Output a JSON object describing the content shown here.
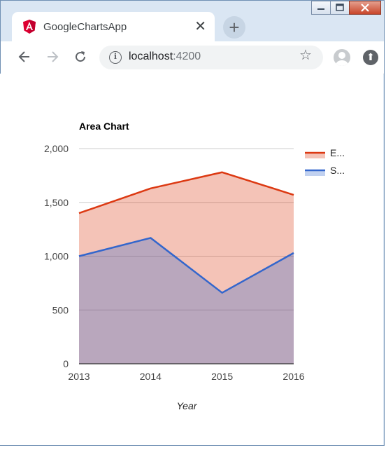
{
  "browser": {
    "tab_title": "GoogleChartsApp",
    "tab_icon": "angular-icon",
    "close_tab_symbol": "✕",
    "new_tab_symbol": "+",
    "url_host": "localhost",
    "url_port": ":4200"
  },
  "chart_data": {
    "type": "area",
    "title": "Area Chart",
    "xlabel": "Year",
    "ylabel": "",
    "categories": [
      "2013",
      "2014",
      "2015",
      "2016"
    ],
    "series": [
      {
        "name": "E...",
        "values": [
          1400,
          1630,
          1780,
          1570
        ],
        "color": "#dc3912"
      },
      {
        "name": "S...",
        "values": [
          1000,
          1170,
          660,
          1030
        ],
        "color": "#3366cc"
      }
    ],
    "ylim": [
      0,
      2000
    ],
    "yticks": [
      "0",
      "500",
      "1,000",
      "1,500",
      "2,000"
    ],
    "grid": true,
    "legend": "right"
  }
}
